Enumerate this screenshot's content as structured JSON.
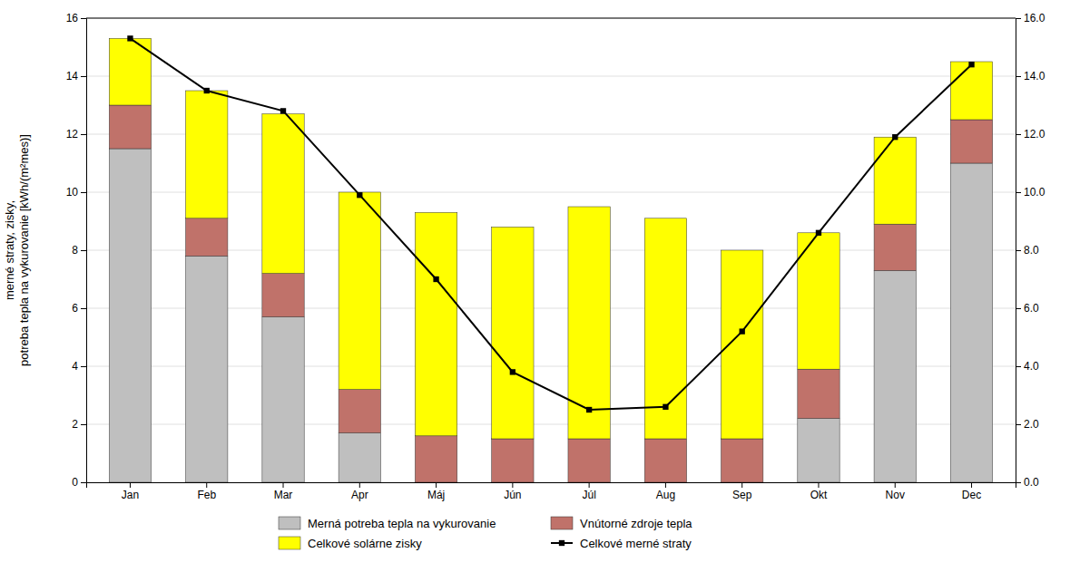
{
  "chart_data": {
    "type": "bar",
    "stacked": true,
    "categories": [
      "Jan",
      "Feb",
      "Mar",
      "Apr",
      "Máj",
      "Jún",
      "Júl",
      "Aug",
      "Sep",
      "Okt",
      "Nov",
      "Dec"
    ],
    "series": [
      {
        "name": "Merná potreba tepla na vykurovanie",
        "color": "#bfbfbf",
        "values": [
          11.5,
          7.8,
          5.7,
          1.7,
          0.0,
          0.0,
          0.0,
          0.0,
          0.0,
          2.2,
          7.3,
          11.0
        ]
      },
      {
        "name": "Vnútorné zdroje tepla",
        "color": "#c0726a",
        "values": [
          1.5,
          1.3,
          1.5,
          1.5,
          1.6,
          1.5,
          1.5,
          1.5,
          1.5,
          1.7,
          1.6,
          1.5
        ]
      },
      {
        "name": "Celkové solárne zisky",
        "color": "#ffff00",
        "values": [
          2.3,
          4.4,
          5.5,
          6.8,
          7.7,
          7.3,
          8.0,
          7.6,
          6.5,
          4.7,
          3.0,
          2.0
        ]
      },
      {
        "name": "Celkové merné straty",
        "type": "line",
        "color": "#000000",
        "marker": "square",
        "values": [
          15.3,
          13.5,
          12.8,
          9.9,
          7.0,
          3.8,
          2.5,
          2.6,
          5.2,
          8.6,
          11.9,
          14.4
        ]
      }
    ],
    "ylabel": "merné straty, zisky,\npotreba tepla na vykurovanie [kWh/(m²mes)]",
    "ylim": [
      0,
      16
    ],
    "yticks": [
      0,
      2,
      4,
      6,
      8,
      10,
      12,
      14,
      16
    ],
    "y2lim": [
      0.0,
      16.0
    ],
    "y2ticks": [
      {
        "value": 0,
        "label": "0.0"
      },
      {
        "value": 2,
        "label": "2.0"
      },
      {
        "value": 4,
        "label": "4.0"
      },
      {
        "value": 6,
        "label": "6.0"
      },
      {
        "value": 8,
        "label": "8.0"
      },
      {
        "value": 10,
        "label": "10.0"
      },
      {
        "value": 12,
        "label": "12.0"
      },
      {
        "value": 14,
        "label": "14.0"
      },
      {
        "value": 16,
        "label": "16.0"
      }
    ],
    "grid": true,
    "legend": "bottom"
  }
}
